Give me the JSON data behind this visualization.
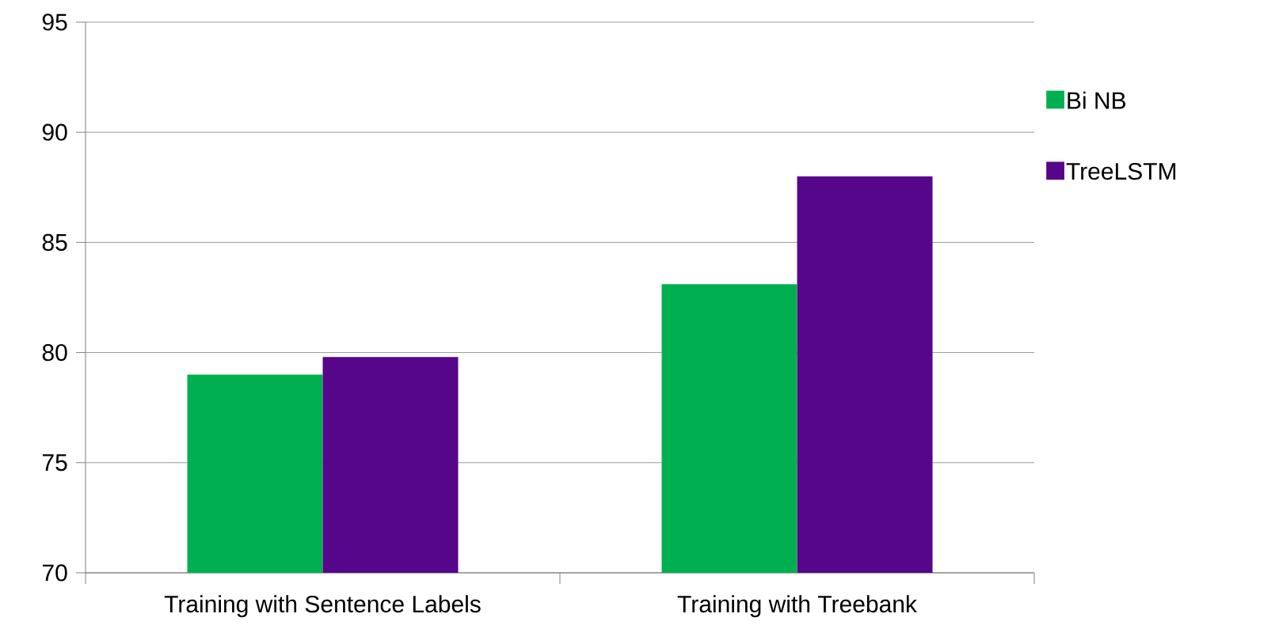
{
  "chart_data": {
    "type": "bar",
    "categories": [
      "Training with Sentence Labels",
      "Training with Treebank"
    ],
    "series": [
      {
        "name": "Bi NB",
        "color": "#00b050",
        "values": [
          79.0,
          83.1
        ]
      },
      {
        "name": "TreeLSTM",
        "color": "#560689",
        "values": [
          79.8,
          88.0
        ]
      }
    ],
    "ylim": [
      70,
      95
    ],
    "yticks": [
      70,
      75,
      80,
      85,
      90,
      95
    ],
    "grid": "y",
    "legend": "right"
  }
}
